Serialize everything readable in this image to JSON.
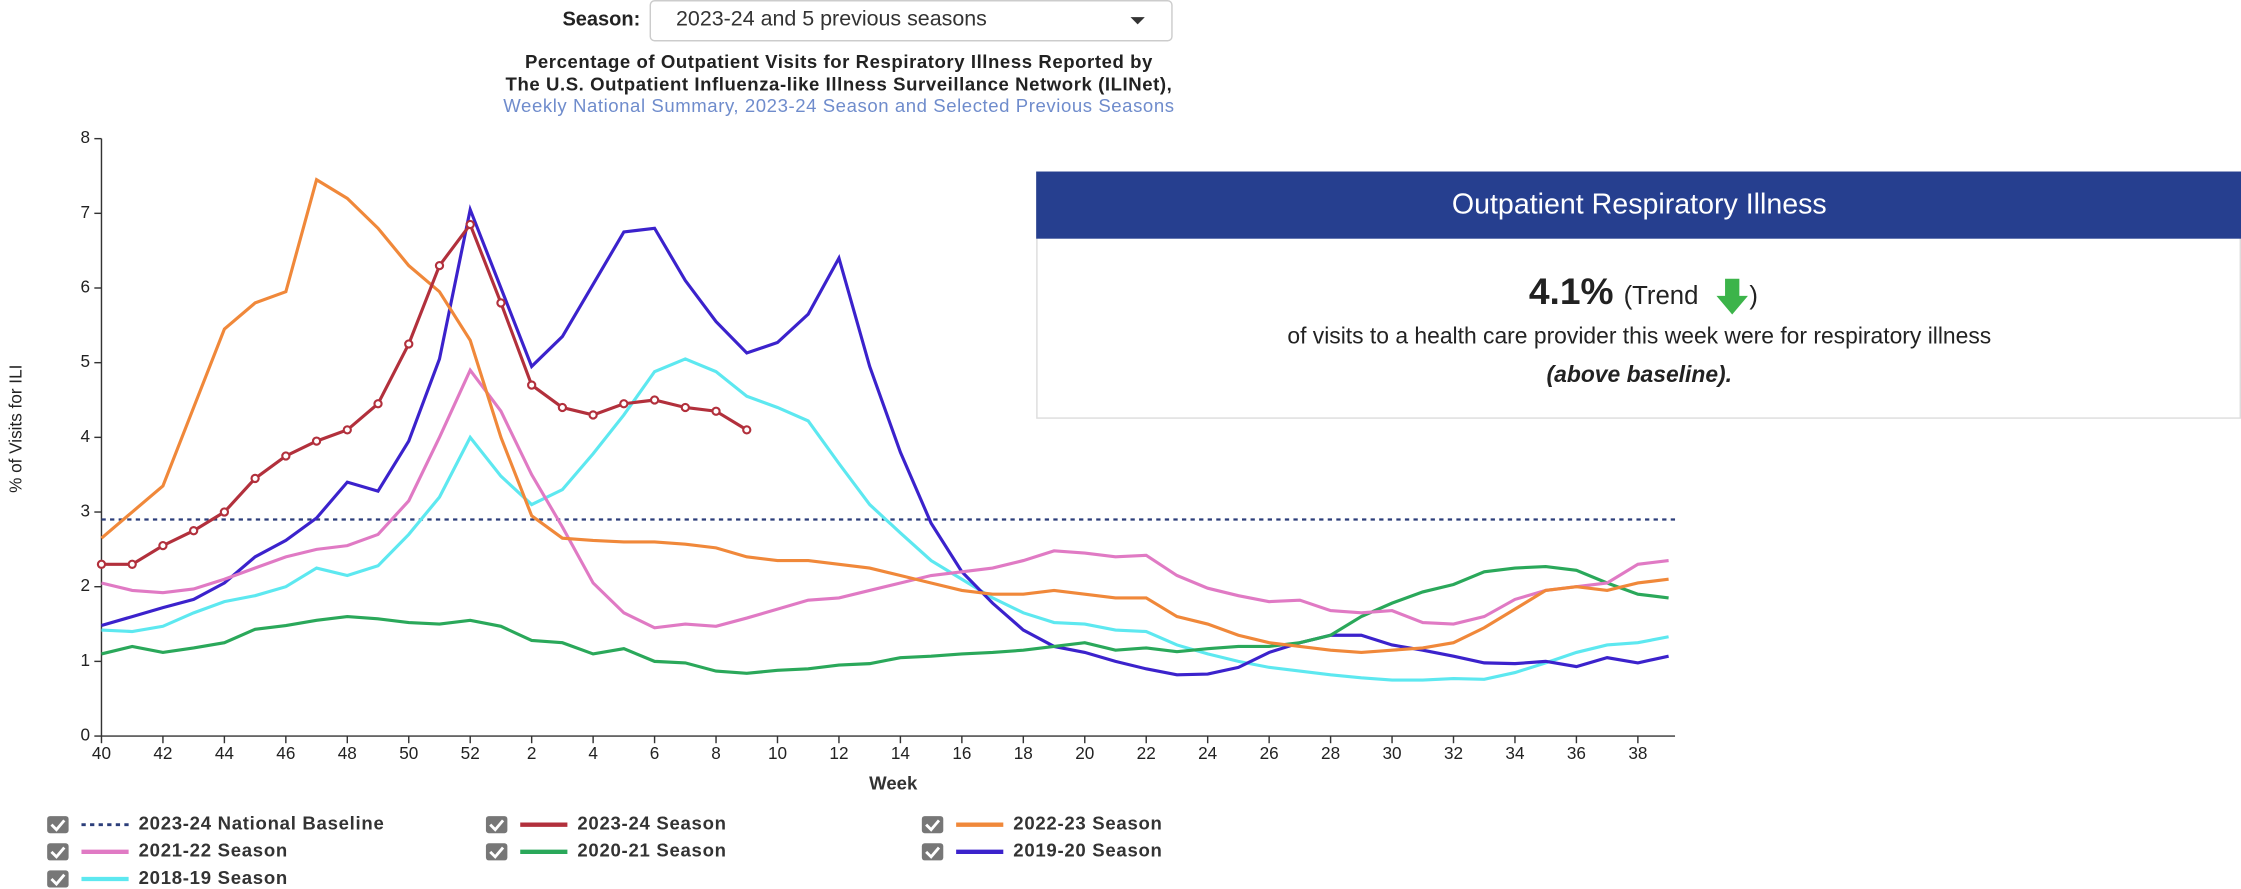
{
  "season_label": "Season:",
  "season_value": "2023-24 and 5 previous seasons",
  "info": {
    "header": "Outpatient Respiratory Illness",
    "value": "4.1%",
    "trend_open": "(Trend",
    "trend_close": ")",
    "description": "of visits to a health care provider this week were for respiratory illness",
    "status": "(above baseline)."
  },
  "chart_data": {
    "type": "line",
    "title": "Percentage of Outpatient Visits for Respiratory Illness Reported by",
    "title_line2": "The U.S. Outpatient Influenza-like Illness Surveillance Network (ILINet),",
    "subtitle": "Weekly National Summary, 2023-24 Season and Selected Previous Seasons",
    "x_label": "Week",
    "y_label": "% of Visits for ILI",
    "categories": [
      "40",
      null,
      "42",
      null,
      "44",
      null,
      "46",
      null,
      "48",
      null,
      "50",
      null,
      "52",
      null,
      "2",
      null,
      "4",
      null,
      "6",
      null,
      "8",
      null,
      "10",
      null,
      "12",
      null,
      "14",
      null,
      "16",
      null,
      "18",
      null,
      "20",
      null,
      "22",
      null,
      "24",
      null,
      "26",
      null,
      "28",
      null,
      "30",
      null,
      "32",
      null,
      "34",
      null,
      "36",
      null,
      "38",
      null
    ],
    "ylim": [
      0,
      8
    ],
    "yticks": [
      0,
      1,
      2,
      3,
      4,
      5,
      6,
      7,
      8
    ],
    "baseline": {
      "name": "2023-24 National Baseline",
      "value": 2.9,
      "color": "#2c3e7a"
    },
    "series": [
      {
        "name": "2023-24 Season",
        "color": "#b2303c",
        "markers": true,
        "values": [
          2.3,
          2.3,
          2.55,
          2.75,
          3.0,
          3.45,
          3.75,
          3.95,
          4.1,
          4.45,
          5.25,
          6.3,
          6.85,
          5.8,
          4.7,
          4.4,
          4.3,
          4.45,
          4.5,
          4.4,
          4.35,
          4.1,
          null,
          null,
          null,
          null,
          null,
          null,
          null,
          null,
          null,
          null,
          null,
          null,
          null,
          null,
          null,
          null,
          null,
          null,
          null,
          null,
          null,
          null,
          null,
          null,
          null,
          null,
          null,
          null,
          null,
          null
        ]
      },
      {
        "name": "2022-23 Season",
        "color": "#f0883a",
        "values": [
          2.65,
          3.0,
          3.35,
          4.4,
          5.45,
          5.8,
          5.95,
          7.45,
          7.2,
          6.8,
          6.3,
          5.95,
          5.3,
          4.0,
          2.95,
          2.65,
          2.62,
          2.6,
          2.6,
          2.57,
          2.52,
          2.4,
          2.35,
          2.35,
          2.3,
          2.25,
          2.15,
          2.05,
          1.95,
          1.9,
          1.9,
          1.95,
          1.9,
          1.85,
          1.85,
          1.6,
          1.5,
          1.35,
          1.25,
          1.2,
          1.15,
          1.12,
          1.15,
          1.18,
          1.25,
          1.45,
          1.7,
          1.95,
          2.0,
          1.95,
          2.05,
          2.1
        ]
      },
      {
        "name": "2021-22 Season",
        "color": "#e07ac4",
        "values": [
          2.05,
          1.95,
          1.92,
          1.97,
          2.1,
          2.25,
          2.4,
          2.5,
          2.55,
          2.7,
          3.15,
          4.0,
          4.9,
          4.35,
          3.5,
          2.8,
          2.05,
          1.65,
          1.45,
          1.5,
          1.47,
          1.58,
          1.7,
          1.82,
          1.85,
          1.95,
          2.05,
          2.15,
          2.2,
          2.25,
          2.35,
          2.48,
          2.45,
          2.4,
          2.42,
          2.15,
          1.98,
          1.88,
          1.8,
          1.82,
          1.68,
          1.65,
          1.68,
          1.52,
          1.5,
          1.6,
          1.83,
          1.95,
          2.0,
          2.05,
          2.3,
          2.35
        ]
      },
      {
        "name": "2020-21 Season",
        "color": "#2aa85a",
        "values": [
          1.1,
          1.2,
          1.12,
          1.18,
          1.25,
          1.43,
          1.48,
          1.55,
          1.6,
          1.57,
          1.52,
          1.5,
          1.55,
          1.47,
          1.28,
          1.25,
          1.1,
          1.17,
          1.0,
          0.98,
          0.87,
          0.84,
          0.88,
          0.9,
          0.95,
          0.97,
          1.05,
          1.07,
          1.1,
          1.12,
          1.15,
          1.2,
          1.25,
          1.15,
          1.18,
          1.13,
          1.17,
          1.2,
          1.2,
          1.25,
          1.35,
          1.6,
          1.78,
          1.93,
          2.03,
          2.2,
          2.25,
          2.27,
          2.22,
          2.05,
          1.9,
          1.85
        ]
      },
      {
        "name": "2019-20 Season",
        "color": "#3b22cc",
        "values": [
          1.48,
          1.6,
          1.72,
          1.83,
          2.05,
          2.4,
          2.62,
          2.92,
          3.4,
          3.28,
          3.95,
          5.05,
          7.05,
          6.0,
          4.95,
          5.35,
          6.05,
          6.75,
          6.8,
          6.1,
          5.55,
          5.13,
          5.27,
          5.65,
          6.4,
          4.95,
          3.8,
          2.85,
          2.2,
          1.78,
          1.42,
          1.2,
          1.12,
          1.0,
          0.9,
          0.82,
          0.83,
          0.92,
          1.12,
          1.25,
          1.35,
          1.35,
          1.22,
          1.15,
          1.07,
          0.98,
          0.97,
          1.0,
          0.93,
          1.05,
          0.98,
          1.07
        ]
      },
      {
        "name": "2018-19 Season",
        "color": "#5de8f0",
        "values": [
          1.42,
          1.4,
          1.47,
          1.65,
          1.8,
          1.88,
          2.0,
          2.25,
          2.15,
          2.28,
          2.7,
          3.2,
          4.0,
          3.48,
          3.1,
          3.3,
          3.78,
          4.3,
          4.88,
          5.05,
          4.88,
          4.55,
          4.4,
          4.22,
          3.65,
          3.1,
          2.72,
          2.35,
          2.1,
          1.85,
          1.65,
          1.52,
          1.5,
          1.42,
          1.4,
          1.22,
          1.1,
          1.0,
          0.92,
          0.87,
          0.82,
          0.78,
          0.75,
          0.75,
          0.77,
          0.76,
          0.85,
          0.98,
          1.12,
          1.22,
          1.25,
          1.33
        ]
      }
    ]
  }
}
